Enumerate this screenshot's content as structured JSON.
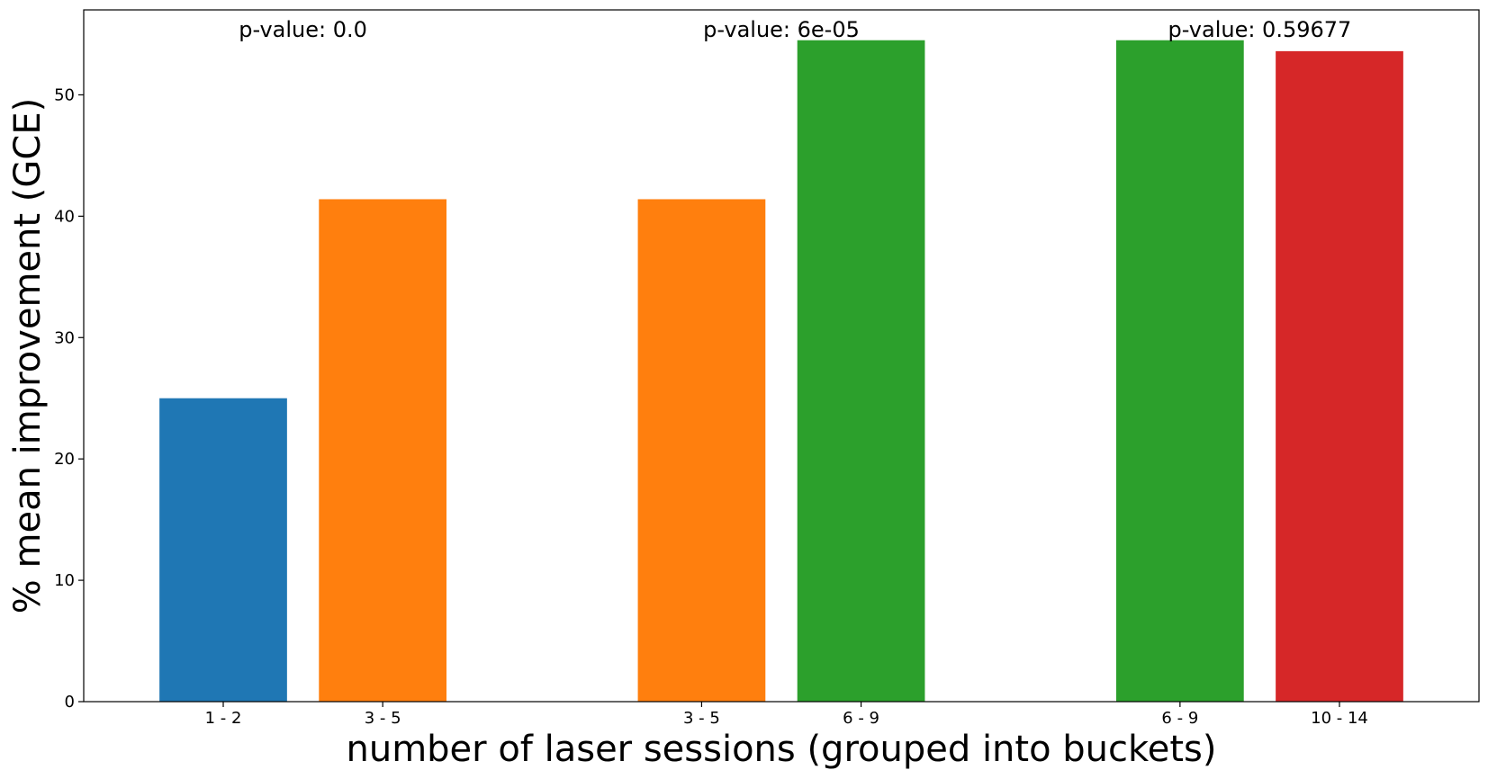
{
  "chart_data": {
    "type": "bar",
    "title": "",
    "xlabel": "number of laser sessions (grouped into buckets)",
    "ylabel": "% mean improvement (GCE)",
    "ylim": [
      0,
      57
    ],
    "yticks": [
      0,
      10,
      20,
      30,
      40,
      50
    ],
    "grid": false,
    "legend": "none",
    "bars": [
      {
        "x": 0,
        "label": "1 - 2",
        "value": 25.0,
        "color": "#1f77b4"
      },
      {
        "x": 1,
        "label": "3 - 5",
        "value": 41.4,
        "color": "#ff7f0e"
      },
      {
        "x": 3,
        "label": "3 - 5",
        "value": 41.4,
        "color": "#ff7f0e"
      },
      {
        "x": 4,
        "label": "6 - 9",
        "value": 54.5,
        "color": "#2ca02c"
      },
      {
        "x": 6,
        "label": "6 - 9",
        "value": 54.5,
        "color": "#2ca02c"
      },
      {
        "x": 7,
        "label": "10 - 14",
        "value": 53.6,
        "color": "#d62728"
      }
    ],
    "annotations": [
      {
        "text": "p-value: 0.0",
        "x": 0.5
      },
      {
        "text": "p-value: 6e-05",
        "x": 3.5
      },
      {
        "text": "p-value: 0.59677",
        "x": 6.5
      }
    ]
  }
}
